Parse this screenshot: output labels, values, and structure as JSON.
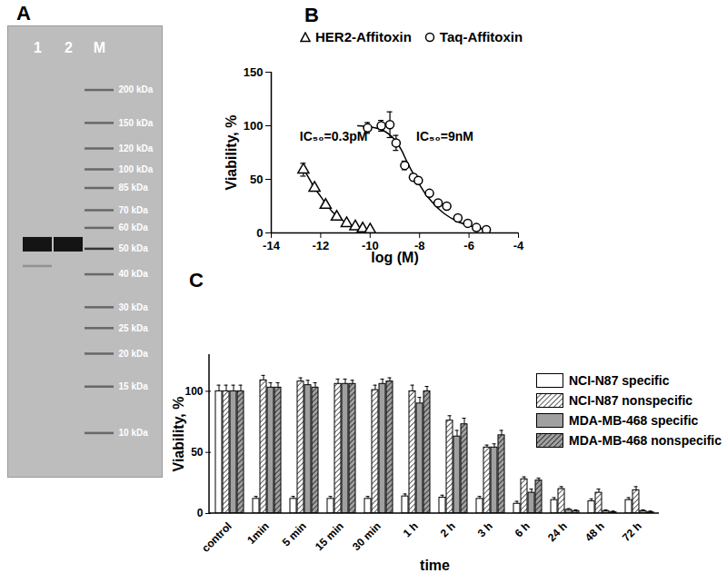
{
  "chart_data": [
    {
      "type": "gel",
      "title": "A",
      "log": "y",
      "grid": false,
      "ylim": [
        6.8,
        350
      ],
      "yticks": [
        {
          "value": 200,
          "label": "200 kDa"
        },
        {
          "value": 150,
          "label": "150 kDa"
        },
        {
          "value": 120,
          "label": "120 kDa"
        },
        {
          "value": 100,
          "label": "100 kDa"
        },
        {
          "value": 85,
          "label": "85 kDa"
        },
        {
          "value": 70,
          "label": "70 kDa"
        },
        {
          "value": 60,
          "label": "60 kDa"
        },
        {
          "value": 50,
          "label": "50 kDa"
        },
        {
          "value": 40,
          "label": "40 kDa"
        },
        {
          "value": 30,
          "label": "30 kDa"
        },
        {
          "value": 25,
          "label": "25 kDa"
        },
        {
          "value": 20,
          "label": "20 kDa"
        },
        {
          "value": 15,
          "label": "15 kDa"
        },
        {
          "value": 10,
          "label": "10 kDa"
        }
      ],
      "lanes": [
        {
          "name": "1",
          "bands": [
            52,
            43
          ],
          "intensity": [
            1,
            0.25
          ]
        },
        {
          "name": "2",
          "bands": [
            52
          ],
          "intensity": [
            1
          ]
        },
        {
          "name": "M",
          "bands": [
            200,
            150,
            120,
            100,
            85,
            70,
            60,
            50,
            40,
            30,
            25,
            20,
            15,
            10
          ],
          "intensity": [
            0.5,
            0.5,
            0.5,
            0.5,
            0.5,
            0.5,
            0.5,
            0.8,
            0.5,
            0.5,
            0.5,
            0.5,
            0.5,
            0.5
          ]
        }
      ]
    },
    {
      "type": "scatter",
      "title": "B",
      "x_label": "log (M)",
      "y_label": "Viability, %",
      "xlim": [
        -14,
        -4
      ],
      "xticks": [
        -14,
        -12,
        -10,
        -8,
        -6,
        -4
      ],
      "ylim": [
        0,
        150
      ],
      "yticks": [
        0,
        50,
        100,
        150
      ],
      "grid": false,
      "legend": "top",
      "series": [
        {
          "name": "HER2-Affitoxin",
          "color": "#000000",
          "marker": "triangle",
          "annotation": "IC₅₀=0.3pM",
          "x": [
            -12.7,
            -12.25,
            -11.8,
            -11.35,
            -10.95,
            -10.6,
            -10.3,
            -10.0
          ],
          "values": [
            59,
            42,
            26,
            15,
            9,
            6,
            4,
            3
          ],
          "errors": [
            6,
            3,
            2,
            1,
            1,
            1,
            1,
            1
          ],
          "fit": {
            "x": [
              -12.7,
              -12.5,
              -12.25,
              -12,
              -11.75,
              -11.5,
              -11.25,
              -11,
              -10.75,
              -10.5,
              -10.25,
              -10
            ],
            "values": [
              60,
              52,
              42,
              34,
              26,
              19,
              14,
              10,
              7,
              5,
              4,
              3
            ]
          }
        },
        {
          "name": "Taq-Affitoxin",
          "color": "#000000",
          "marker": "circle",
          "annotation": "IC₅₀=9nM",
          "x": [
            -10.1,
            -9.55,
            -9.2,
            -8.95,
            -8.6,
            -8.25,
            -8.05,
            -7.6,
            -7.25,
            -6.9,
            -6.45,
            -6.05,
            -5.7,
            -5.3
          ],
          "values": [
            98,
            100,
            101,
            84,
            63,
            52,
            49,
            37,
            28,
            25,
            14,
            9,
            5,
            3
          ],
          "errors": [
            5,
            5,
            12,
            7,
            4,
            3,
            3,
            2,
            2,
            2,
            2,
            1,
            1,
            1
          ],
          "fit": {
            "x": [
              -10.5,
              -10,
              -9.5,
              -9,
              -8.75,
              -8.5,
              -8.25,
              -8,
              -7.75,
              -7.5,
              -7.25,
              -7,
              -6.5,
              -6,
              -5.5,
              -5.2
            ],
            "values": [
              100,
              99,
              96,
              87,
              78,
              66,
              55,
              45,
              36,
              29,
              23,
              18,
              11,
              7,
              4,
              3
            ]
          }
        }
      ]
    },
    {
      "type": "bar",
      "title": "C",
      "x_label": "time",
      "y_label": "Viability, %",
      "categories": [
        "control",
        "1min",
        "5 min",
        "15 min",
        "30 min",
        "1 h",
        "2 h",
        "3 h",
        "6 h",
        "24 h",
        "48 h",
        "72 h"
      ],
      "ylim": [
        0,
        130
      ],
      "yticks": [
        0,
        50,
        100
      ],
      "grid": false,
      "legend": "upper right",
      "series": [
        {
          "name": "NCI-N87 specific",
          "color": "#ffffff",
          "line_style": "solid",
          "values": [
            100,
            12,
            12,
            12,
            12,
            14,
            13,
            12,
            8,
            11,
            10,
            11
          ],
          "errors": [
            5,
            2,
            2,
            2,
            2,
            2,
            2,
            2,
            2,
            2,
            2,
            2
          ]
        },
        {
          "name": "NCI-N87 nonspecific",
          "color": "#ffffff",
          "line_style": "hatched",
          "values": [
            100,
            109,
            108,
            106,
            101,
            100,
            76,
            54,
            28,
            20,
            17,
            19
          ],
          "errors": [
            5,
            4,
            3,
            4,
            4,
            5,
            4,
            2,
            2,
            2,
            3,
            3
          ]
        },
        {
          "name": "MDA-MB-468 specific",
          "color": "#a0a0a0",
          "line_style": "solid",
          "values": [
            100,
            103,
            105,
            106,
            106,
            90,
            63,
            54,
            17,
            3,
            2,
            2
          ],
          "errors": [
            5,
            4,
            4,
            4,
            4,
            5,
            5,
            3,
            3,
            1,
            1,
            1
          ]
        },
        {
          "name": "MDA-MB-468 nonspecific",
          "color": "#a0a0a0",
          "line_style": "hatched",
          "values": [
            100,
            103,
            103,
            106,
            108,
            100,
            73,
            64,
            27,
            2,
            1,
            1
          ],
          "errors": [
            5,
            4,
            4,
            3,
            3,
            4,
            5,
            4,
            2,
            1,
            1,
            1
          ]
        }
      ]
    }
  ]
}
